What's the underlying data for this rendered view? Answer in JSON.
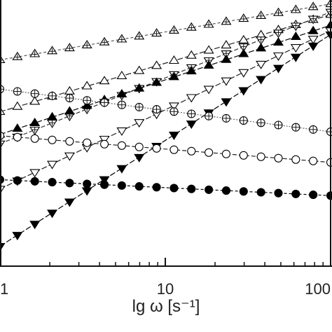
{
  "chart_data": {
    "type": "line",
    "xscale": "log",
    "xlabel": "lg ω [s⁻¹]",
    "xlim": [
      1,
      100
    ],
    "ylim": [
      0,
      1
    ],
    "xticks": [
      {
        "value": 1,
        "label": "1"
      },
      {
        "value": 10,
        "label": "10"
      },
      {
        "value": 100,
        "label": "100"
      }
    ],
    "grid": false,
    "series": [
      {
        "marker": "crossed-triangle",
        "fill": "#ffffff",
        "line": "#555555",
        "dash": "4,3",
        "x": [
          1,
          100
        ],
        "y": [
          0.775,
          0.985
        ],
        "n": 20
      },
      {
        "marker": "open-triangle-up",
        "fill": "#ffffff",
        "line": "#222222",
        "dash": "8,3",
        "x": [
          1,
          100
        ],
        "y": [
          0.58,
          0.945
        ],
        "n": 20
      },
      {
        "marker": "crossed-triangle-down",
        "fill": "#ffffff",
        "line": "#333333",
        "dash": "6,3",
        "x": [
          1,
          100
        ],
        "y": [
          0.46,
          0.955
        ],
        "n": 20
      },
      {
        "marker": "filled-triangle-up",
        "fill": "#000000",
        "line": "#000000",
        "dash": "8,3",
        "x": [
          1,
          100
        ],
        "y": [
          0.495,
          0.905
        ],
        "n": 20
      },
      {
        "marker": "open-triangle-down",
        "fill": "#ffffff",
        "line": "#222222",
        "dash": "8,3",
        "x": [
          1,
          100
        ],
        "y": [
          0.29,
          0.885
        ],
        "n": 20
      },
      {
        "marker": "filled-triangle-down",
        "fill": "#000000",
        "line": "#000000",
        "dash": "8,3",
        "x": [
          1,
          100
        ],
        "y": [
          0.075,
          0.87
        ],
        "n": 20
      },
      {
        "marker": "crossed-circle",
        "fill": "#ffffff",
        "line": "#666666",
        "dash": "2,2",
        "x": [
          1,
          100
        ],
        "y": [
          0.665,
          0.505
        ],
        "n": 20
      },
      {
        "marker": "open-circle",
        "fill": "#ffffff",
        "line": "#222222",
        "dash": "6,3",
        "x": [
          1,
          100
        ],
        "y": [
          0.49,
          0.39
        ],
        "n": 20
      },
      {
        "marker": "filled-circle",
        "fill": "#000000",
        "line": "#000000",
        "dash": "4,3",
        "x": [
          1,
          100
        ],
        "y": [
          0.325,
          0.265
        ],
        "n": 20
      }
    ]
  }
}
